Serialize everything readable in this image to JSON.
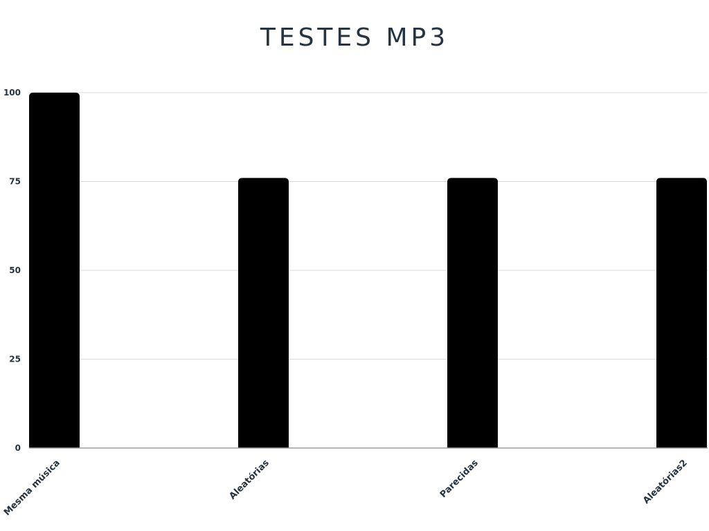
{
  "chart_data": {
    "type": "bar",
    "title": "TESTES MP3",
    "categories": [
      "Mesma música",
      "Aleatórias",
      "Parecidas",
      "Aleatórias2"
    ],
    "values": [
      100,
      76,
      76,
      76
    ],
    "ylim": [
      0,
      100
    ],
    "yticks": [
      0,
      25,
      50,
      75,
      100
    ],
    "xlabel": "",
    "ylabel": "",
    "grid": true,
    "legend": "none",
    "bar_color": "#000000",
    "grid_color": "#d9d9d9",
    "axis_color": "#9e9e9e",
    "text_color": "#263340"
  }
}
